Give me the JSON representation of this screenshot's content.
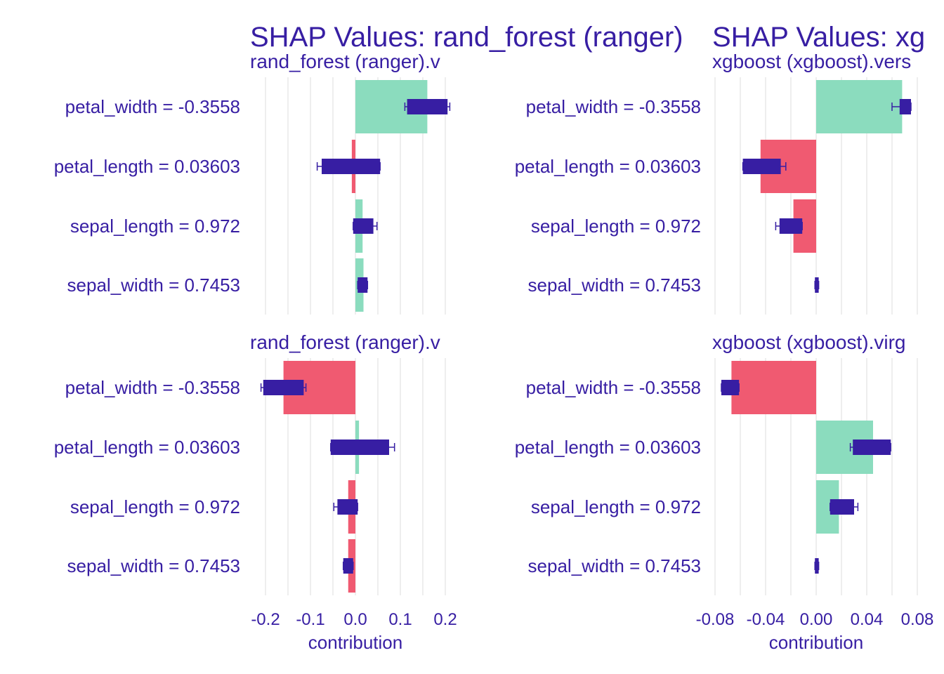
{
  "colors": {
    "text": "#371ea3",
    "positive": "#8bdcbe",
    "negative": "#f05a71",
    "box": "#371ea3",
    "grid": "#e3e3e3",
    "background": "#ffffff"
  },
  "titles": {
    "left": "SHAP Values: rand_forest (ranger)",
    "right": "SHAP Values: xg"
  },
  "chart_data": [
    {
      "type": "bar",
      "panel": "top-left",
      "strip": "rand_forest (ranger).v",
      "categories": [
        "petal_width = -0.3558",
        "petal_length = 0.03603",
        "sepal_length = 0.972",
        "sepal_width = 0.7453"
      ],
      "values": [
        0.16,
        -0.008,
        0.016,
        0.018
      ],
      "box": [
        [
          0.115,
          0.205
        ],
        [
          -0.075,
          0.055
        ],
        [
          -0.005,
          0.04
        ],
        [
          0.005,
          0.027
        ]
      ],
      "whisker": [
        [
          0.11,
          0.21
        ],
        [
          -0.085,
          0.055
        ],
        [
          -0.005,
          0.048
        ],
        [
          0.005,
          0.027
        ]
      ],
      "xlim": [
        -0.2,
        0.2
      ],
      "xticks": [
        "-0.2",
        "-0.1",
        "0.0",
        "0.1",
        "0.2"
      ],
      "xtick_values": [
        -0.2,
        -0.1,
        0.0,
        0.1,
        0.2
      ],
      "xlabel": "contribution",
      "show_x_axis": false
    },
    {
      "type": "bar",
      "panel": "top-right",
      "strip": "xgboost (xgboost).vers",
      "categories": [
        "petal_width = -0.3558",
        "petal_length = 0.03603",
        "sepal_length = 0.972",
        "sepal_width = 0.7453"
      ],
      "values": [
        0.068,
        -0.044,
        -0.018,
        0.0
      ],
      "box": [
        [
          0.066,
          0.075
        ],
        [
          -0.058,
          -0.028
        ],
        [
          -0.029,
          -0.011
        ],
        [
          -0.001,
          0.002
        ]
      ],
      "whisker": [
        [
          0.06,
          0.075
        ],
        [
          -0.058,
          -0.024
        ],
        [
          -0.032,
          -0.011
        ],
        [
          -0.001,
          0.002
        ]
      ],
      "xlim": [
        -0.08,
        0.08
      ],
      "xticks": [
        "-0.08",
        "-0.04",
        "0.00",
        "0.04",
        "0.08"
      ],
      "xtick_values": [
        -0.08,
        -0.04,
        0.0,
        0.04,
        0.08
      ],
      "xlabel": "contribution",
      "show_x_axis": false
    },
    {
      "type": "bar",
      "panel": "bottom-left",
      "strip": "rand_forest (ranger).v",
      "categories": [
        "petal_width = -0.3558",
        "petal_length = 0.03603",
        "sepal_length = 0.972",
        "sepal_width = 0.7453"
      ],
      "values": [
        -0.16,
        0.008,
        -0.016,
        -0.016
      ],
      "box": [
        [
          -0.205,
          -0.115
        ],
        [
          -0.055,
          0.075
        ],
        [
          -0.04,
          0.005
        ],
        [
          -0.027,
          -0.005
        ]
      ],
      "whisker": [
        [
          -0.21,
          -0.11
        ],
        [
          -0.055,
          0.087
        ],
        [
          -0.048,
          0.005
        ],
        [
          -0.027,
          -0.005
        ]
      ],
      "xlim": [
        -0.2,
        0.2
      ],
      "xticks": [
        "-0.2",
        "-0.1",
        "0.0",
        "0.1",
        "0.2"
      ],
      "xtick_values": [
        -0.2,
        -0.1,
        0.0,
        0.1,
        0.2
      ],
      "xlabel": "contribution",
      "show_x_axis": true
    },
    {
      "type": "bar",
      "panel": "bottom-right",
      "strip": "xgboost (xgboost).virg",
      "categories": [
        "petal_width = -0.3558",
        "petal_length = 0.03603",
        "sepal_length = 0.972",
        "sepal_width = 0.7453"
      ],
      "values": [
        -0.067,
        0.045,
        0.018,
        0.0
      ],
      "box": [
        [
          -0.075,
          -0.061
        ],
        [
          0.029,
          0.059
        ],
        [
          0.011,
          0.03
        ],
        [
          -0.001,
          0.002
        ]
      ],
      "whisker": [
        [
          -0.075,
          -0.061
        ],
        [
          0.027,
          0.059
        ],
        [
          0.011,
          0.033
        ],
        [
          -0.001,
          0.002
        ]
      ],
      "xlim": [
        -0.08,
        0.08
      ],
      "xticks": [
        "-0.08",
        "-0.04",
        "0.00",
        "0.04",
        "0.08"
      ],
      "xtick_values": [
        -0.08,
        -0.04,
        0.0,
        0.04,
        0.08
      ],
      "xlabel": "contribution",
      "show_x_axis": true
    }
  ]
}
